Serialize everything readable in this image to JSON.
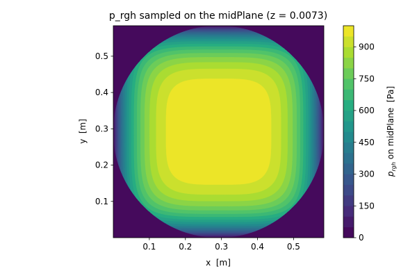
{
  "chart_data": {
    "type": "heatmap",
    "title": "p_rgh sampled on the midPlane (z = 0.0073)",
    "xlabel": "x  [m]",
    "ylabel": "y  [m]",
    "colorbar_label_base": "p",
    "colorbar_label_sub": "rgh",
    "colorbar_label_rest": " on midPlane  [Pa]",
    "xlim": [
      0,
      0.584
    ],
    "ylim": [
      0,
      0.584
    ],
    "x_ticks": [
      0.1,
      0.2,
      0.3,
      0.4,
      0.5
    ],
    "x_tick_labels": [
      "0.1",
      "0.2",
      "0.3",
      "0.4",
      "0.5"
    ],
    "y_ticks": [
      0.1,
      0.2,
      0.3,
      0.4,
      0.5
    ],
    "y_tick_labels": [
      "0.1",
      "0.2",
      "0.3",
      "0.4",
      "0.5"
    ],
    "colorbar_ticks": [
      0,
      150,
      300,
      450,
      600,
      750,
      900
    ],
    "colorbar_tick_labels": [
      "0",
      "150",
      "300",
      "450",
      "600",
      "750",
      "900"
    ],
    "value_range": [
      0,
      1000
    ],
    "center": [
      0.292,
      0.292
    ],
    "peak_value": 1000,
    "contour_levels": 20,
    "colormap": "viridis"
  }
}
